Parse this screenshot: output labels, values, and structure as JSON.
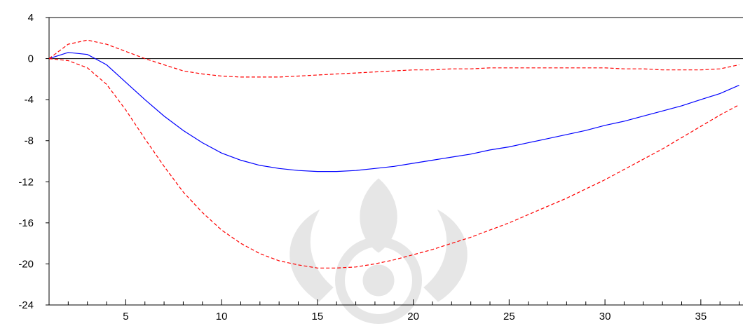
{
  "chart_data": {
    "type": "line",
    "title": "",
    "xlabel": "",
    "ylabel": "",
    "xlim": [
      1,
      37.2
    ],
    "ylim": [
      -24,
      4
    ],
    "x_ticks": [
      5,
      10,
      15,
      20,
      25,
      30,
      35
    ],
    "y_ticks": [
      4,
      0,
      -4,
      -8,
      -12,
      -16,
      -20,
      -24
    ],
    "x_tick_labels": [
      "5",
      "10",
      "15",
      "20",
      "25",
      "30",
      "35"
    ],
    "y_tick_labels": [
      "4",
      "0",
      "-4",
      "-8",
      "-12",
      "-16",
      "-20",
      "-24"
    ],
    "reference_line": 0,
    "grid": false,
    "series": [
      {
        "color": "#0000ff",
        "dash": "solid",
        "x": [
          1,
          2,
          3,
          4,
          5,
          6,
          7,
          8,
          9,
          10,
          11,
          12,
          13,
          14,
          15,
          16,
          17,
          18,
          19,
          20,
          21,
          22,
          23,
          24,
          25,
          26,
          27,
          28,
          29,
          30,
          31,
          32,
          33,
          34,
          35,
          36,
          37
        ],
        "values": [
          0,
          0.6,
          0.4,
          -0.6,
          -2.3,
          -4,
          -5.6,
          -7,
          -8.2,
          -9.2,
          -9.9,
          -10.4,
          -10.7,
          -10.9,
          -11,
          -11,
          -10.9,
          -10.7,
          -10.5,
          -10.2,
          -9.9,
          -9.6,
          -9.3,
          -8.9,
          -8.6,
          -8.2,
          -7.8,
          -7.4,
          -7,
          -6.5,
          -6.1,
          -5.6,
          -5.1,
          -4.6,
          -4,
          -3.4,
          -2.6
        ]
      },
      {
        "color": "#ff0000",
        "dash": "dashed",
        "x": [
          1,
          2,
          3,
          4,
          5,
          6,
          7,
          8,
          9,
          10,
          11,
          12,
          13,
          14,
          15,
          16,
          17,
          18,
          19,
          20,
          21,
          22,
          23,
          24,
          25,
          26,
          27,
          28,
          29,
          30,
          31,
          32,
          33,
          34,
          35,
          36,
          37
        ],
        "values": [
          0,
          1.4,
          1.8,
          1.4,
          0.7,
          0,
          -0.6,
          -1.2,
          -1.5,
          -1.7,
          -1.8,
          -1.8,
          -1.8,
          -1.7,
          -1.6,
          -1.5,
          -1.4,
          -1.3,
          -1.2,
          -1.1,
          -1.1,
          -1,
          -1,
          -0.9,
          -0.9,
          -0.9,
          -0.9,
          -0.9,
          -0.9,
          -0.9,
          -1,
          -1,
          -1.1,
          -1.1,
          -1.1,
          -1,
          -0.6
        ]
      },
      {
        "color": "#ff0000",
        "dash": "dashed",
        "x": [
          1,
          2,
          3,
          4,
          5,
          6,
          7,
          8,
          9,
          10,
          11,
          12,
          13,
          14,
          15,
          16,
          17,
          18,
          19,
          20,
          21,
          22,
          23,
          24,
          25,
          26,
          27,
          28,
          29,
          30,
          31,
          32,
          33,
          34,
          35,
          36,
          37
        ],
        "values": [
          0,
          -0.2,
          -0.9,
          -2.5,
          -5,
          -7.8,
          -10.5,
          -13,
          -15,
          -16.7,
          -18,
          -19,
          -19.7,
          -20.1,
          -20.4,
          -20.4,
          -20.3,
          -20,
          -19.6,
          -19.1,
          -18.6,
          -18,
          -17.4,
          -16.7,
          -16,
          -15.2,
          -14.4,
          -13.6,
          -12.7,
          -11.8,
          -10.8,
          -9.8,
          -8.8,
          -7.7,
          -6.6,
          -5.5,
          -4.5
        ]
      }
    ]
  }
}
